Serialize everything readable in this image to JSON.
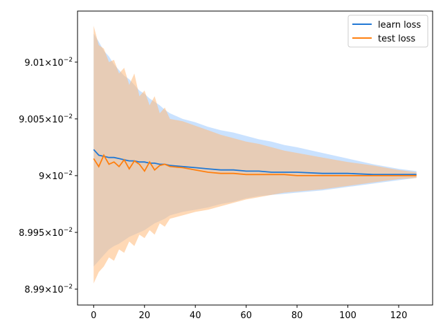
{
  "chart_data": {
    "type": "line",
    "title": "",
    "xlabel": "",
    "ylabel": "",
    "xlim": [
      -6.35,
      133.35
    ],
    "ylim": [
      8.9886,
      9.0145
    ],
    "x_ticks": [
      0,
      20,
      40,
      60,
      80,
      100,
      120
    ],
    "y_ticks": [
      {
        "value": 8.99,
        "mantissa": "8.99",
        "exp": "−2"
      },
      {
        "value": 8.995,
        "mantissa": "8.995",
        "exp": "−2"
      },
      {
        "value": 9.0,
        "mantissa": "9",
        "exp": "−2"
      },
      {
        "value": 9.005,
        "mantissa": "9.005",
        "exp": "−2"
      },
      {
        "value": 9.01,
        "mantissa": "9.01",
        "exp": "−2"
      }
    ],
    "y_tick_base": "10",
    "y_tick_times": "×",
    "y_unit_note": "values shown as ×10^-2",
    "legend": {
      "position": "top-right"
    },
    "colors": {
      "learn": "#1f77d4",
      "test": "#ff7f0e",
      "learn_band": "#9ecbff",
      "test_band": "#ffb97a"
    },
    "series": [
      {
        "name": "learn loss",
        "x": [
          0,
          2,
          4,
          6,
          8,
          10,
          12,
          14,
          16,
          18,
          20,
          22,
          24,
          26,
          28,
          30,
          35,
          40,
          45,
          50,
          55,
          60,
          65,
          70,
          75,
          80,
          90,
          100,
          110,
          120,
          127
        ],
        "values": [
          9.0023,
          9.0018,
          9.0017,
          9.0016,
          9.0016,
          9.0015,
          9.0014,
          9.0013,
          9.0013,
          9.0012,
          9.0012,
          9.0011,
          9.0011,
          9.001,
          9.001,
          9.0009,
          9.0008,
          9.0007,
          9.0006,
          9.0005,
          9.0005,
          9.0004,
          9.0004,
          9.0003,
          9.0003,
          9.0003,
          9.0002,
          9.0002,
          9.0001,
          9.0001,
          9.0001
        ],
        "upper": [
          9.0125,
          9.0118,
          9.011,
          9.0105,
          9.0098,
          9.0093,
          9.0088,
          9.0085,
          9.008,
          9.0075,
          9.0072,
          9.0068,
          9.0065,
          9.0062,
          9.0058,
          9.0055,
          9.005,
          9.0047,
          9.0043,
          9.004,
          9.0038,
          9.0035,
          9.0032,
          9.003,
          9.0027,
          9.0025,
          9.002,
          9.0015,
          9.001,
          9.0006,
          9.0004
        ],
        "lower": [
          8.992,
          8.9925,
          8.993,
          8.9935,
          8.9938,
          8.994,
          8.9943,
          8.9946,
          8.9948,
          8.995,
          8.9952,
          8.9955,
          8.9958,
          8.996,
          8.9962,
          8.9965,
          8.9968,
          8.997,
          8.9972,
          8.9975,
          8.9977,
          8.998,
          8.9982,
          8.9983,
          8.9984,
          8.9985,
          8.9987,
          8.999,
          8.9993,
          8.9996,
          8.9998
        ]
      },
      {
        "name": "test loss",
        "x": [
          0,
          2,
          4,
          6,
          8,
          10,
          12,
          14,
          16,
          18,
          20,
          22,
          24,
          26,
          28,
          30,
          35,
          40,
          45,
          50,
          55,
          60,
          65,
          70,
          75,
          80,
          90,
          100,
          110,
          120,
          127
        ],
        "values": [
          9.0015,
          9.0008,
          9.0018,
          9.001,
          9.0012,
          9.0008,
          9.0014,
          9.0006,
          9.0013,
          9.001,
          9.0004,
          9.0012,
          9.0005,
          9.0009,
          9.001,
          9.0008,
          9.0007,
          9.0005,
          9.0003,
          9.0002,
          9.0002,
          9.0001,
          9.0001,
          9.0001,
          9.0001,
          9.0,
          9.0,
          9.0,
          9.0,
          9.0,
          9.0
        ],
        "upper": [
          9.0132,
          9.0115,
          9.0112,
          9.01,
          9.0102,
          9.009,
          9.0095,
          9.008,
          9.009,
          9.007,
          9.0075,
          9.0062,
          9.007,
          9.0055,
          9.006,
          9.005,
          9.0048,
          9.0044,
          9.004,
          9.0036,
          9.0033,
          9.003,
          9.0028,
          9.0025,
          9.0022,
          9.002,
          9.0016,
          9.0012,
          9.0009,
          9.0005,
          9.0003
        ],
        "lower": [
          8.9905,
          8.9915,
          8.992,
          8.9928,
          8.9925,
          8.9935,
          8.9932,
          8.9942,
          8.9938,
          8.9948,
          8.9945,
          8.9952,
          8.9948,
          8.9958,
          8.9955,
          8.9962,
          8.9965,
          8.9968,
          8.997,
          8.9973,
          8.9976,
          8.9979,
          8.9981,
          8.9983,
          8.9985,
          8.9986,
          8.9988,
          8.9991,
          8.9994,
          8.9997,
          8.9998
        ]
      }
    ]
  }
}
